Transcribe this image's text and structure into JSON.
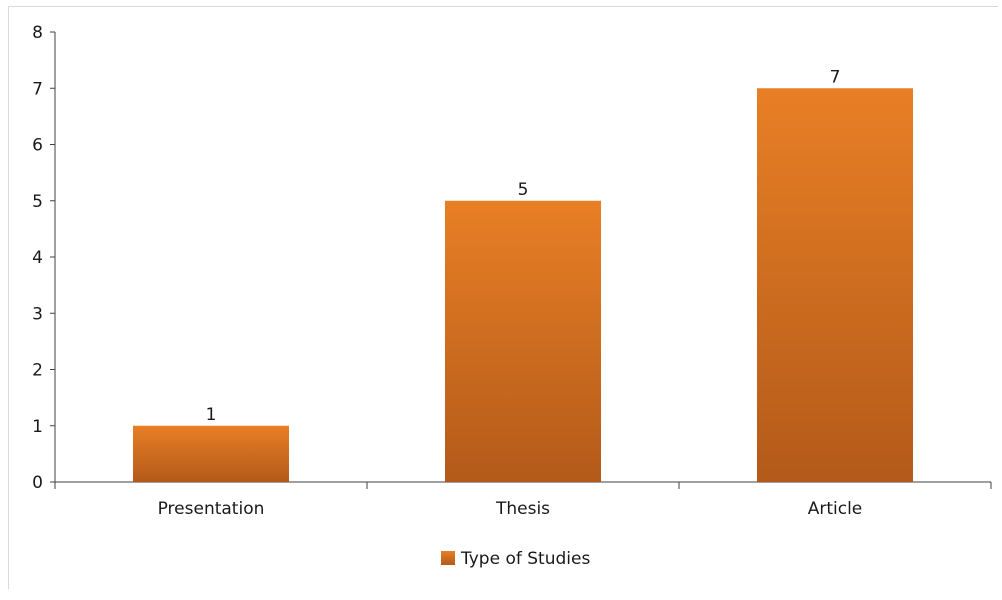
{
  "chart_data": {
    "type": "bar",
    "categories": [
      "Presentation",
      "Thesis",
      "Article"
    ],
    "series": [
      {
        "name": "Type of Studies",
        "values": [
          1,
          5,
          7
        ]
      }
    ],
    "data_labels": [
      "1",
      "5",
      "7"
    ],
    "y_ticks": [
      "0",
      "1",
      "2",
      "3",
      "4",
      "5",
      "6",
      "7",
      "8"
    ],
    "ylim": [
      0,
      8
    ],
    "title": "",
    "xlabel": "",
    "ylabel": "",
    "grid": false,
    "legend_position": "bottom",
    "colors": {
      "bar_top": "#e87f25",
      "bar_bottom": "#b35a1a",
      "axis": "#404040"
    }
  }
}
